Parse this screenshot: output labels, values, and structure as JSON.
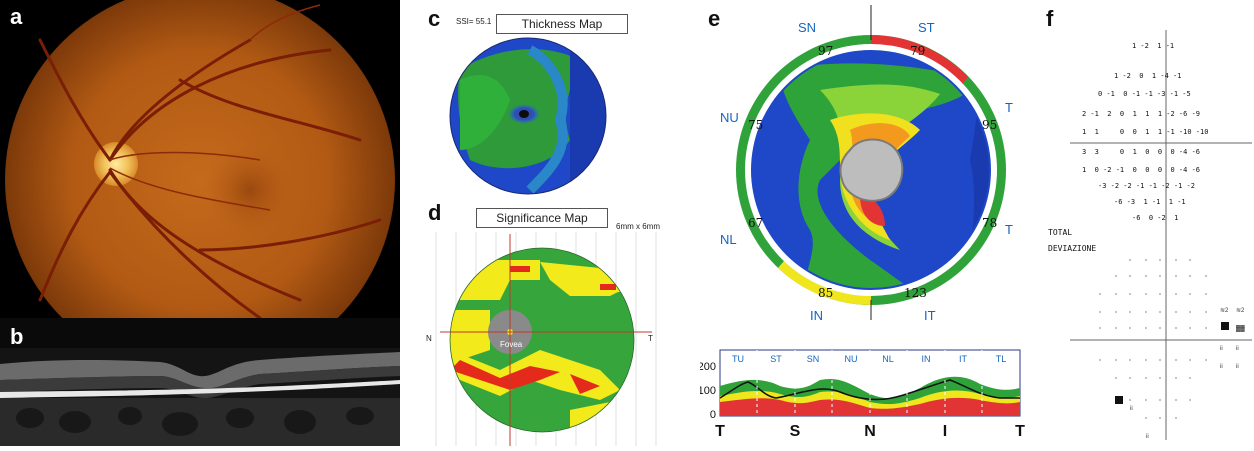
{
  "panels": {
    "a": {
      "label": "a"
    },
    "b": {
      "label": "b"
    },
    "c": {
      "label": "c",
      "ssi": "SSI= 55.1",
      "title": "Thickness Map"
    },
    "d": {
      "label": "d",
      "title": "Significance Map",
      "size": "6mm x 6mm",
      "fovea": "Fovea",
      "left": "N",
      "right": "T"
    },
    "e": {
      "label": "e",
      "sectors": {
        "SN": "SN",
        "ST": "ST",
        "T_up": "T",
        "NU": "NU",
        "NL": "NL",
        "T_low": "T",
        "IN": "IN",
        "IT": "IT"
      },
      "values": {
        "SN": "97",
        "ST": "79",
        "NU": "75",
        "TU": "95",
        "NL": "67",
        "TL": "78",
        "IN": "85",
        "IT": "123"
      },
      "graph": {
        "segments": [
          "TU",
          "ST",
          "SN",
          "NU",
          "NL",
          "IN",
          "IT",
          "TL"
        ],
        "y_ticks": [
          "200",
          "100",
          "0"
        ],
        "x_ticks": [
          "T",
          "S",
          "N",
          "I",
          "T"
        ]
      }
    },
    "f": {
      "label": "f",
      "total_label": "TOTAL",
      "deviation_label": "DEVIAZIONE",
      "rows": [
        "1 -2  1 -1",
        "1 -2  0  1 -4 -1",
        "0 -1  0 -1 -1 -3 -1 -5",
        "2 -1  2  0  1  1  1 -2 -6 -9",
        "1  1     0  0  1  1 -1 -10 -10",
        "3  3     0  1  0  0  0 -4 -6",
        "1  0 -2 -1  0  0  0  0 -4 -6",
        "-3 -2 -2 -1 -1 -2 -1 -2",
        "-6 -3  1 -1  1 -1",
        "-6  0 -2  1"
      ]
    }
  }
}
